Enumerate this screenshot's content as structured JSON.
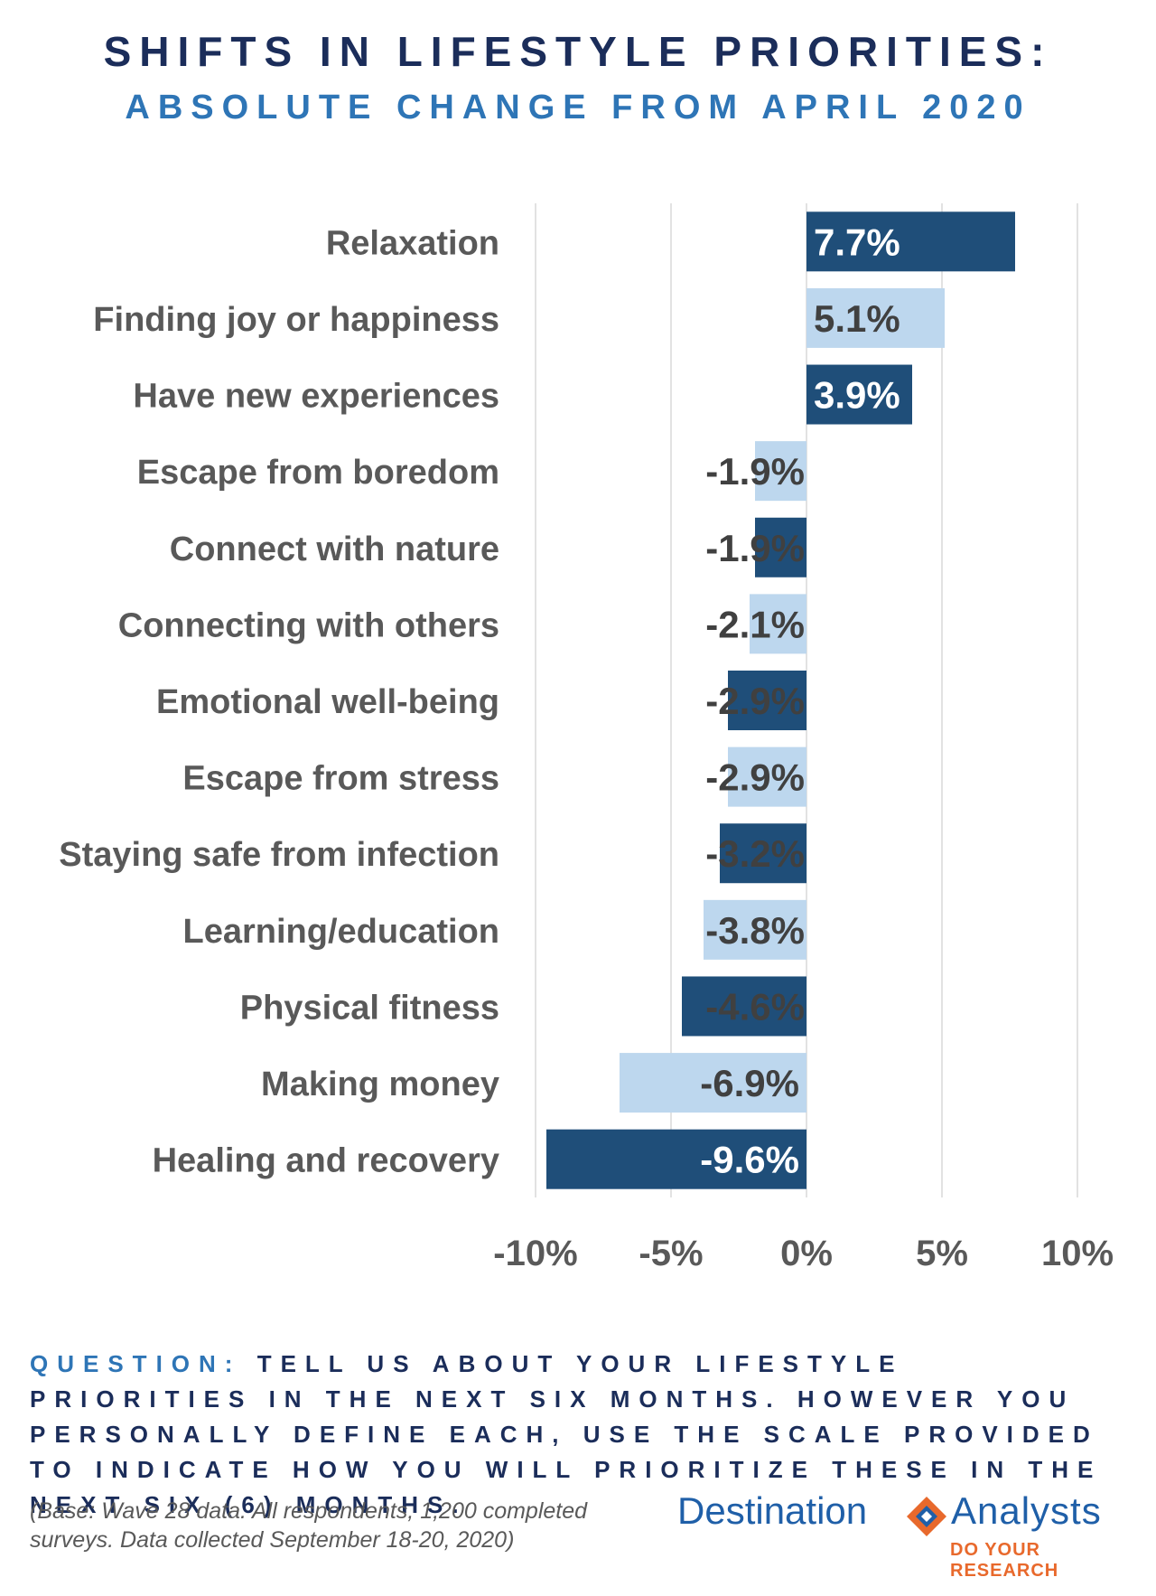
{
  "title": "SHIFTS IN LIFESTYLE PRIORITIES:",
  "subtitle": "ABSOLUTE CHANGE FROM APRIL 2020",
  "chart_data": {
    "type": "bar",
    "orientation": "horizontal",
    "categories": [
      "Relaxation",
      "Finding joy or happiness",
      "Have new experiences",
      "Escape from boredom",
      "Connect with nature",
      "Connecting with others",
      "Emotional well-being",
      "Escape from stress",
      "Staying safe from infection",
      "Learning/education",
      "Physical fitness",
      "Making money",
      "Healing and recovery"
    ],
    "values": [
      7.7,
      5.1,
      3.9,
      -1.9,
      -1.9,
      -2.1,
      -2.9,
      -2.9,
      -3.2,
      -3.8,
      -4.6,
      -6.9,
      -9.6
    ],
    "labels": [
      "7.7%",
      "5.1%",
      "3.9%",
      "-1.9%",
      "-1.9%",
      "-2.1%",
      "-2.9%",
      "-2.9%",
      "-3.2%",
      "-3.8%",
      "-4.6%",
      "-6.9%",
      "-9.6%"
    ],
    "xlim": [
      -10,
      10
    ],
    "x_ticks": [
      -10,
      -5,
      0,
      5,
      10
    ],
    "x_tick_labels": [
      "-10%",
      "-5%",
      "0%",
      "5%",
      "10%"
    ],
    "grid": true,
    "colors": {
      "dark": "#1f4e79",
      "light": "#bdd7ee",
      "dark_label": "#ffffff",
      "light_label": "#404040"
    },
    "bar_colors": [
      "dark",
      "light",
      "dark",
      "light",
      "dark",
      "light",
      "dark",
      "light",
      "dark",
      "light",
      "dark",
      "light",
      "dark"
    ]
  },
  "question": {
    "label": "QUESTION:",
    "text": "TELL US ABOUT YOUR LIFESTYLE PRIORITIES IN THE NEXT SIX MONTHS. HOWEVER YOU PERSONALLY DEFINE EACH, USE THE SCALE PROVIDED TO INDICATE HOW YOU WILL PRIORITIZE THESE IN THE NEXT SIX (6) MONTHS."
  },
  "base_note": "(Base: Wave 28 data. All respondents, 1,200 completed surveys. Data collected September 18-20, 2020)",
  "logo": {
    "name_left": "Destination",
    "name_right": "Analysts",
    "tagline": "DO YOUR RESEARCH",
    "icon": "diamond-logo-icon"
  }
}
